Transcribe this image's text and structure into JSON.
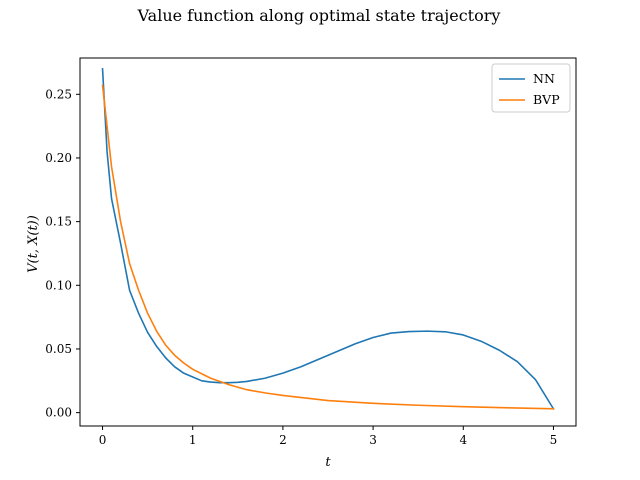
{
  "chart_data": {
    "type": "line",
    "title": "Value function along optimal state trajectory",
    "xlabel": "t",
    "ylabel": "V(t, X(t))",
    "xlim": [
      -0.25,
      5.25
    ],
    "ylim": [
      -0.0105,
      0.2785
    ],
    "xticks": [
      0,
      1,
      2,
      3,
      4,
      5
    ],
    "yticks": [
      0.0,
      0.05,
      0.1,
      0.15,
      0.2,
      0.25
    ],
    "ytick_labels": [
      "0.00",
      "0.05",
      "0.10",
      "0.15",
      "0.20",
      "0.25"
    ],
    "grid": false,
    "legend_position": "top-right",
    "series": [
      {
        "name": "NN",
        "color": "#1f77b4",
        "x": [
          0,
          0.05,
          0.1,
          0.2,
          0.3,
          0.4,
          0.5,
          0.6,
          0.7,
          0.8,
          0.9,
          1.0,
          1.1,
          1.2,
          1.3,
          1.4,
          1.5,
          1.6,
          1.8,
          2.0,
          2.2,
          2.4,
          2.6,
          2.8,
          3.0,
          3.2,
          3.4,
          3.6,
          3.8,
          4.0,
          4.2,
          4.4,
          4.6,
          4.8,
          5.0
        ],
        "y": [
          0.27,
          0.205,
          0.168,
          0.133,
          0.096,
          0.078,
          0.063,
          0.052,
          0.043,
          0.036,
          0.031,
          0.028,
          0.025,
          0.024,
          0.0235,
          0.0235,
          0.0238,
          0.0245,
          0.027,
          0.031,
          0.036,
          0.042,
          0.048,
          0.054,
          0.059,
          0.0625,
          0.0637,
          0.064,
          0.0635,
          0.061,
          0.056,
          0.049,
          0.04,
          0.026,
          0.003
        ]
      },
      {
        "name": "BVP",
        "color": "#ff7f0e",
        "x": [
          0,
          0.05,
          0.1,
          0.2,
          0.3,
          0.4,
          0.5,
          0.6,
          0.7,
          0.8,
          0.9,
          1.0,
          1.2,
          1.4,
          1.6,
          1.8,
          2.0,
          2.5,
          3.0,
          3.5,
          4.0,
          4.5,
          5.0
        ],
        "y": [
          0.257,
          0.225,
          0.193,
          0.15,
          0.117,
          0.096,
          0.078,
          0.064,
          0.053,
          0.045,
          0.039,
          0.034,
          0.027,
          0.022,
          0.018,
          0.0155,
          0.0135,
          0.0095,
          0.0073,
          0.0058,
          0.0047,
          0.0038,
          0.003
        ]
      }
    ]
  }
}
